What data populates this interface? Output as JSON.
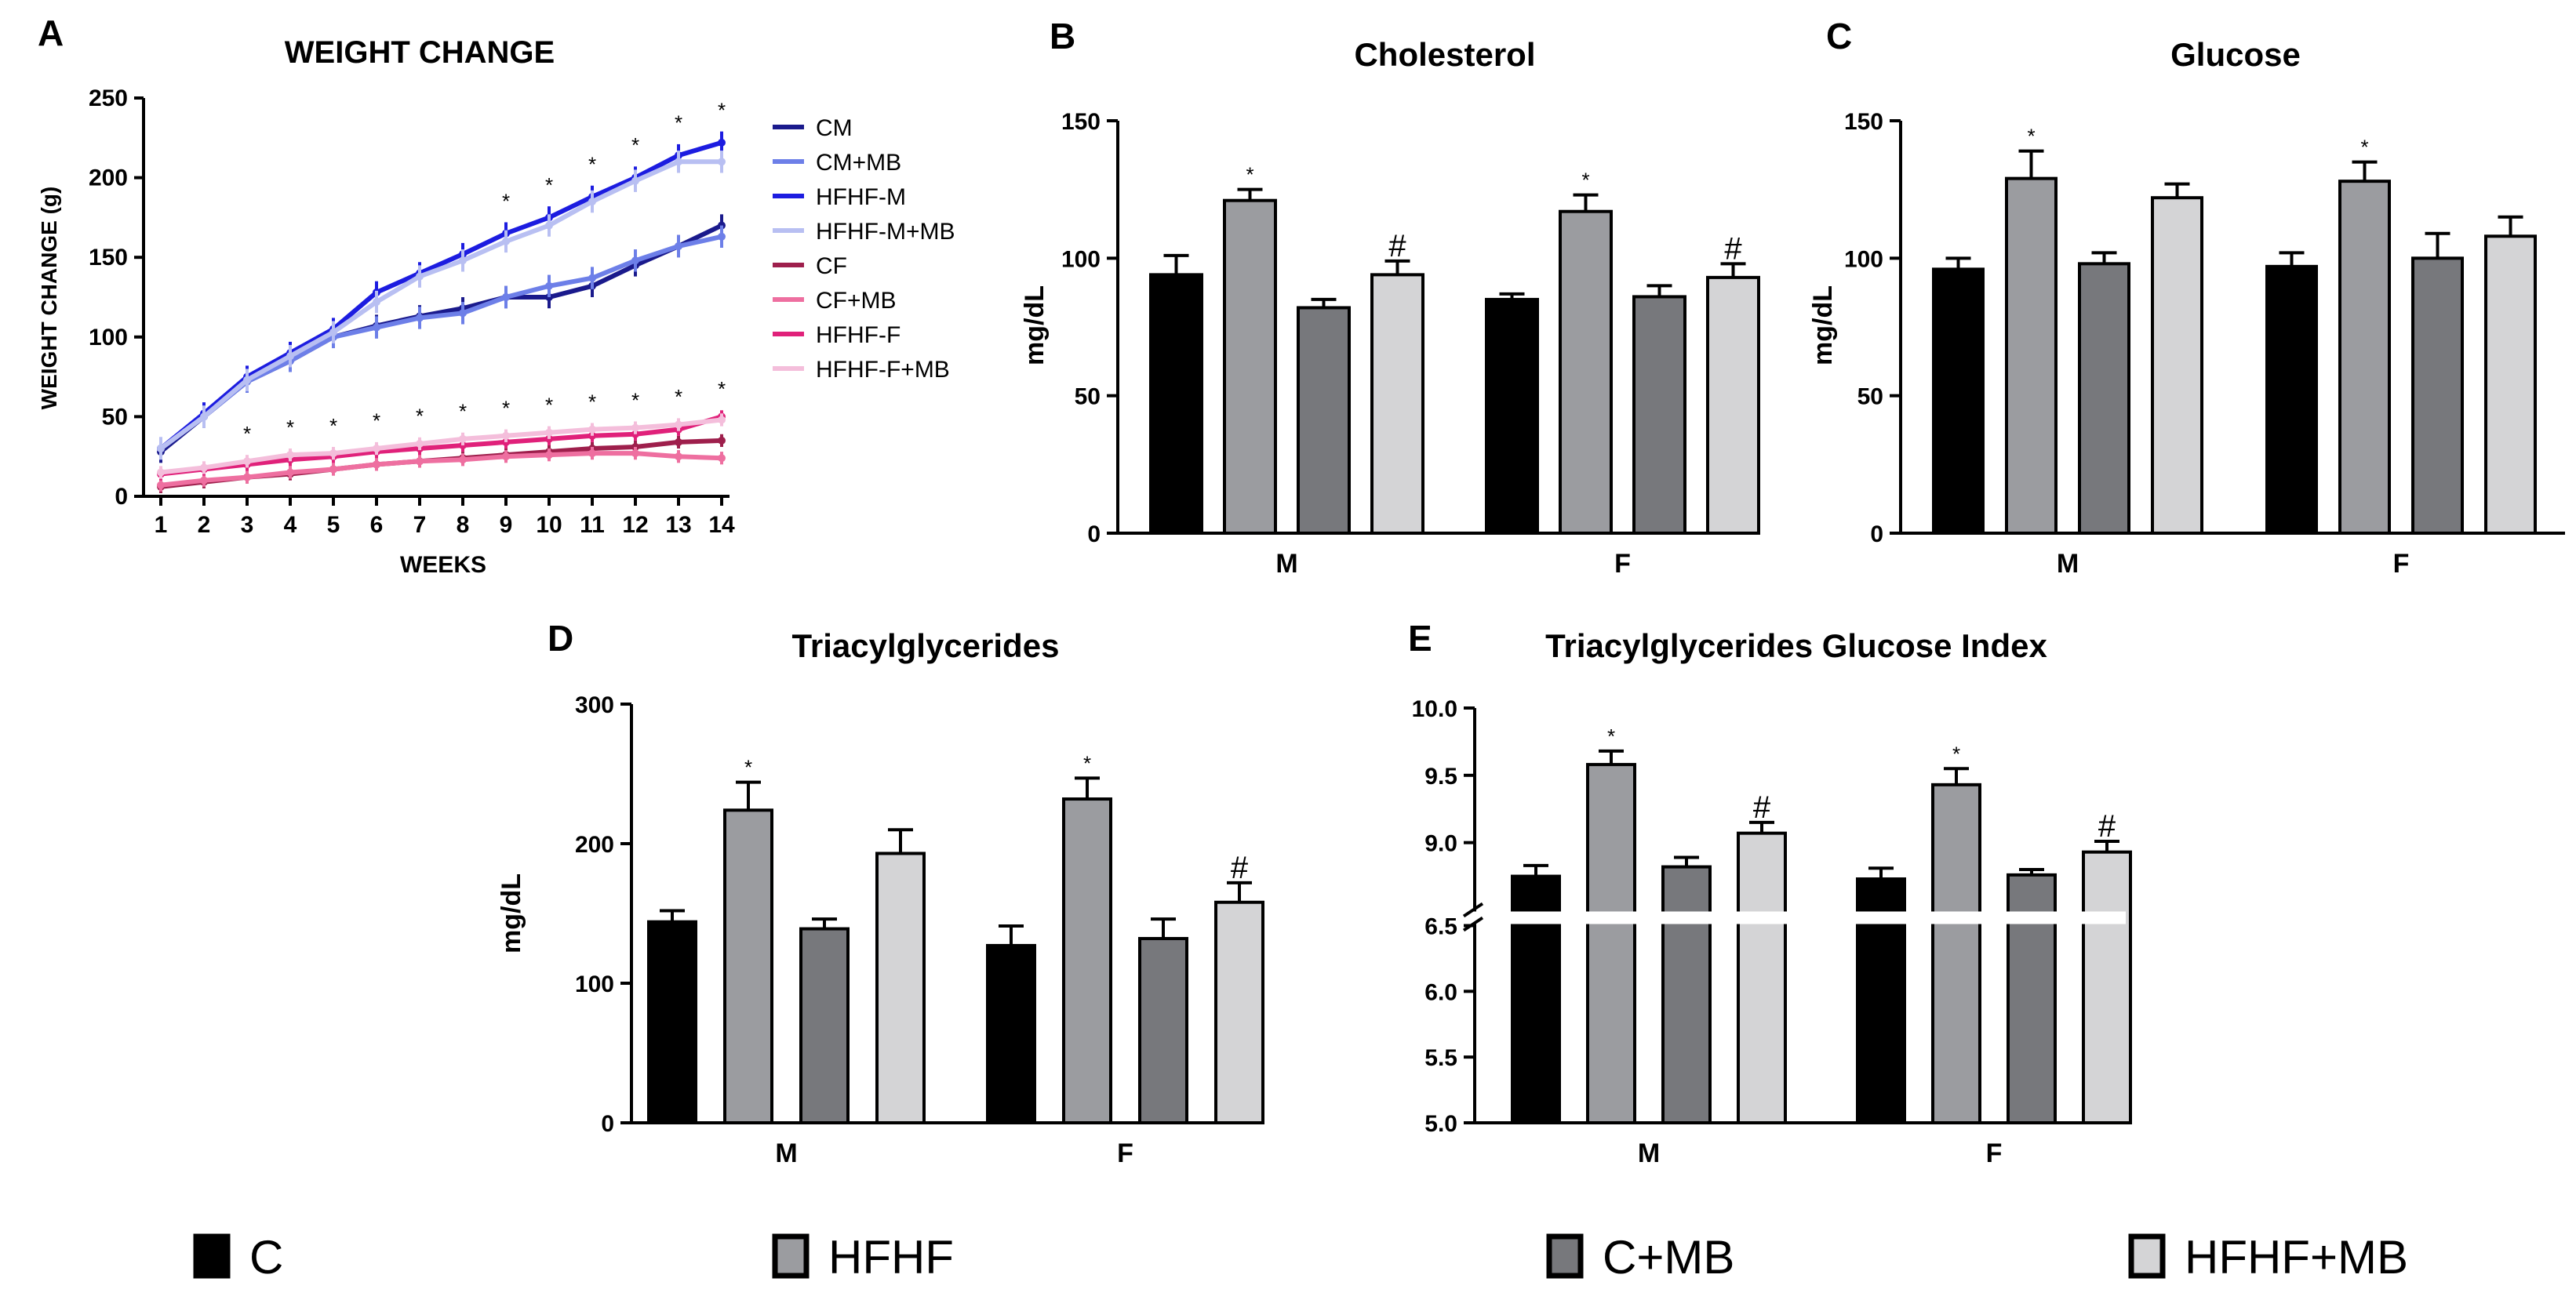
{
  "chart_data": [
    {
      "panel": "A",
      "type": "line",
      "title": "WEIGHT CHANGE",
      "xlabel": "WEEKS",
      "ylabel": "WEIGHT CHANGE (g)",
      "ylim": [
        0,
        250
      ],
      "yticks": [
        0,
        50,
        100,
        150,
        200,
        250
      ],
      "x": [
        1,
        2,
        3,
        4,
        5,
        6,
        7,
        8,
        9,
        10,
        11,
        12,
        13,
        14
      ],
      "xticks": [
        "1",
        "2",
        "3",
        "4",
        "5",
        "6",
        "7",
        "8",
        "9",
        "10",
        "11",
        "12",
        "13",
        "14"
      ],
      "series": [
        {
          "name": "CM",
          "color": "#1a1a8c",
          "values": [
            28,
            50,
            72,
            85,
            100,
            107,
            113,
            118,
            125,
            125,
            132,
            145,
            157,
            170
          ]
        },
        {
          "name": "CM+MB",
          "color": "#6d7fe8",
          "values": [
            30,
            50,
            72,
            85,
            100,
            106,
            112,
            115,
            125,
            132,
            137,
            148,
            157,
            163
          ]
        },
        {
          "name": "HFHF-M",
          "color": "#1c1ce0",
          "values": [
            30,
            52,
            75,
            90,
            105,
            128,
            140,
            152,
            165,
            175,
            188,
            200,
            214,
            222
          ]
        },
        {
          "name": "HFHF-M+MB",
          "color": "#b8bff2",
          "values": [
            30,
            50,
            73,
            88,
            103,
            122,
            138,
            148,
            160,
            170,
            185,
            198,
            210,
            210
          ]
        },
        {
          "name": "CF",
          "color": "#9e1f4c",
          "values": [
            6,
            9,
            12,
            14,
            17,
            20,
            22,
            24,
            26,
            28,
            30,
            31,
            34,
            35
          ]
        },
        {
          "name": "CF+MB",
          "color": "#ee6fa0",
          "values": [
            7,
            10,
            12,
            15,
            17,
            20,
            22,
            23,
            25,
            26,
            27,
            27,
            25,
            24
          ]
        },
        {
          "name": "HFHF-F",
          "color": "#e0217a",
          "values": [
            14,
            17,
            20,
            23,
            25,
            28,
            30,
            32,
            34,
            36,
            38,
            39,
            42,
            50
          ]
        },
        {
          "name": "HFHF-F+MB",
          "color": "#f4bedb",
          "values": [
            15,
            18,
            22,
            26,
            27,
            30,
            33,
            36,
            38,
            40,
            42,
            43,
            45,
            48
          ]
        }
      ],
      "annotations": {
        "upper_star_weeks": [
          9,
          10,
          11,
          12,
          13,
          14
        ],
        "lower_star_weeks": [
          3,
          4,
          5,
          6,
          7,
          8,
          9,
          10,
          11,
          12,
          13,
          14
        ],
        "symbol": "*"
      }
    },
    {
      "panel": "B",
      "type": "bar",
      "title": "Cholesterol",
      "ylabel": "mg/dL",
      "ylim": [
        0,
        150
      ],
      "yticks": [
        0,
        50,
        100,
        150
      ],
      "categories": [
        "M",
        "F"
      ],
      "series": [
        {
          "name": "C",
          "values": [
            94,
            85
          ],
          "errors": [
            7,
            2
          ],
          "marks": [
            "",
            ""
          ]
        },
        {
          "name": "HFHF",
          "values": [
            121,
            117
          ],
          "errors": [
            4,
            6
          ],
          "marks": [
            "*",
            "*"
          ]
        },
        {
          "name": "C+MB",
          "values": [
            82,
            86
          ],
          "errors": [
            3,
            4
          ],
          "marks": [
            "",
            ""
          ]
        },
        {
          "name": "HFHF+MB",
          "values": [
            94,
            93
          ],
          "errors": [
            5,
            5
          ],
          "marks": [
            "#",
            "#"
          ]
        }
      ]
    },
    {
      "panel": "C",
      "type": "bar",
      "title": "Glucose",
      "ylabel": "mg/dL",
      "ylim": [
        0,
        150
      ],
      "yticks": [
        0,
        50,
        100,
        150
      ],
      "categories": [
        "M",
        "F"
      ],
      "series": [
        {
          "name": "C",
          "values": [
            96,
            97
          ],
          "errors": [
            4,
            5
          ],
          "marks": [
            "",
            ""
          ]
        },
        {
          "name": "HFHF",
          "values": [
            129,
            128
          ],
          "errors": [
            10,
            7
          ],
          "marks": [
            "*",
            "*"
          ]
        },
        {
          "name": "C+MB",
          "values": [
            98,
            100
          ],
          "errors": [
            4,
            9
          ],
          "marks": [
            "",
            ""
          ]
        },
        {
          "name": "HFHF+MB",
          "values": [
            122,
            108
          ],
          "errors": [
            5,
            7
          ],
          "marks": [
            "",
            ""
          ]
        }
      ]
    },
    {
      "panel": "D",
      "type": "bar",
      "title": "Triacylglycerides",
      "ylabel": "mg/dL",
      "ylim": [
        0,
        300
      ],
      "yticks": [
        0,
        100,
        200,
        300
      ],
      "categories": [
        "M",
        "F"
      ],
      "series": [
        {
          "name": "C",
          "values": [
            144,
            127
          ],
          "errors": [
            8,
            14
          ],
          "marks": [
            "",
            ""
          ]
        },
        {
          "name": "HFHF",
          "values": [
            224,
            232
          ],
          "errors": [
            20,
            15
          ],
          "marks": [
            "*",
            "*"
          ]
        },
        {
          "name": "C+MB",
          "values": [
            139,
            132
          ],
          "errors": [
            7,
            14
          ],
          "marks": [
            "",
            ""
          ]
        },
        {
          "name": "HFHF+MB",
          "values": [
            193,
            158
          ],
          "errors": [
            17,
            14
          ],
          "marks": [
            "",
            "#"
          ]
        }
      ]
    },
    {
      "panel": "E",
      "type": "bar",
      "title": "Triacylglycerides Glucose Index",
      "ylabel": "",
      "ylim": [
        5.0,
        10.0
      ],
      "axis_break": [
        6.5,
        8.5
      ],
      "yticks": [
        "5.0",
        "5.5",
        "6.0",
        "6.5",
        "9.0",
        "9.5",
        "10.0"
      ],
      "categories": [
        "M",
        "F"
      ],
      "series": [
        {
          "name": "C",
          "values": [
            8.75,
            8.73
          ],
          "errors": [
            0.08,
            0.08
          ],
          "marks": [
            "",
            ""
          ]
        },
        {
          "name": "HFHF",
          "values": [
            9.58,
            9.43
          ],
          "errors": [
            0.1,
            0.12
          ],
          "marks": [
            "*",
            "*"
          ]
        },
        {
          "name": "C+MB",
          "values": [
            8.82,
            8.76
          ],
          "errors": [
            0.07,
            0.04
          ],
          "marks": [
            "",
            ""
          ]
        },
        {
          "name": "HFHF+MB",
          "values": [
            9.07,
            8.93
          ],
          "errors": [
            0.08,
            0.08
          ],
          "marks": [
            "#",
            "#"
          ]
        }
      ]
    }
  ],
  "bar_groups": [
    {
      "name": "C",
      "color": "#000000"
    },
    {
      "name": "HFHF",
      "color": "#9b9ca0"
    },
    {
      "name": "C+MB",
      "color": "#77787c"
    },
    {
      "name": "HFHF+MB",
      "color": "#d4d4d6"
    }
  ]
}
